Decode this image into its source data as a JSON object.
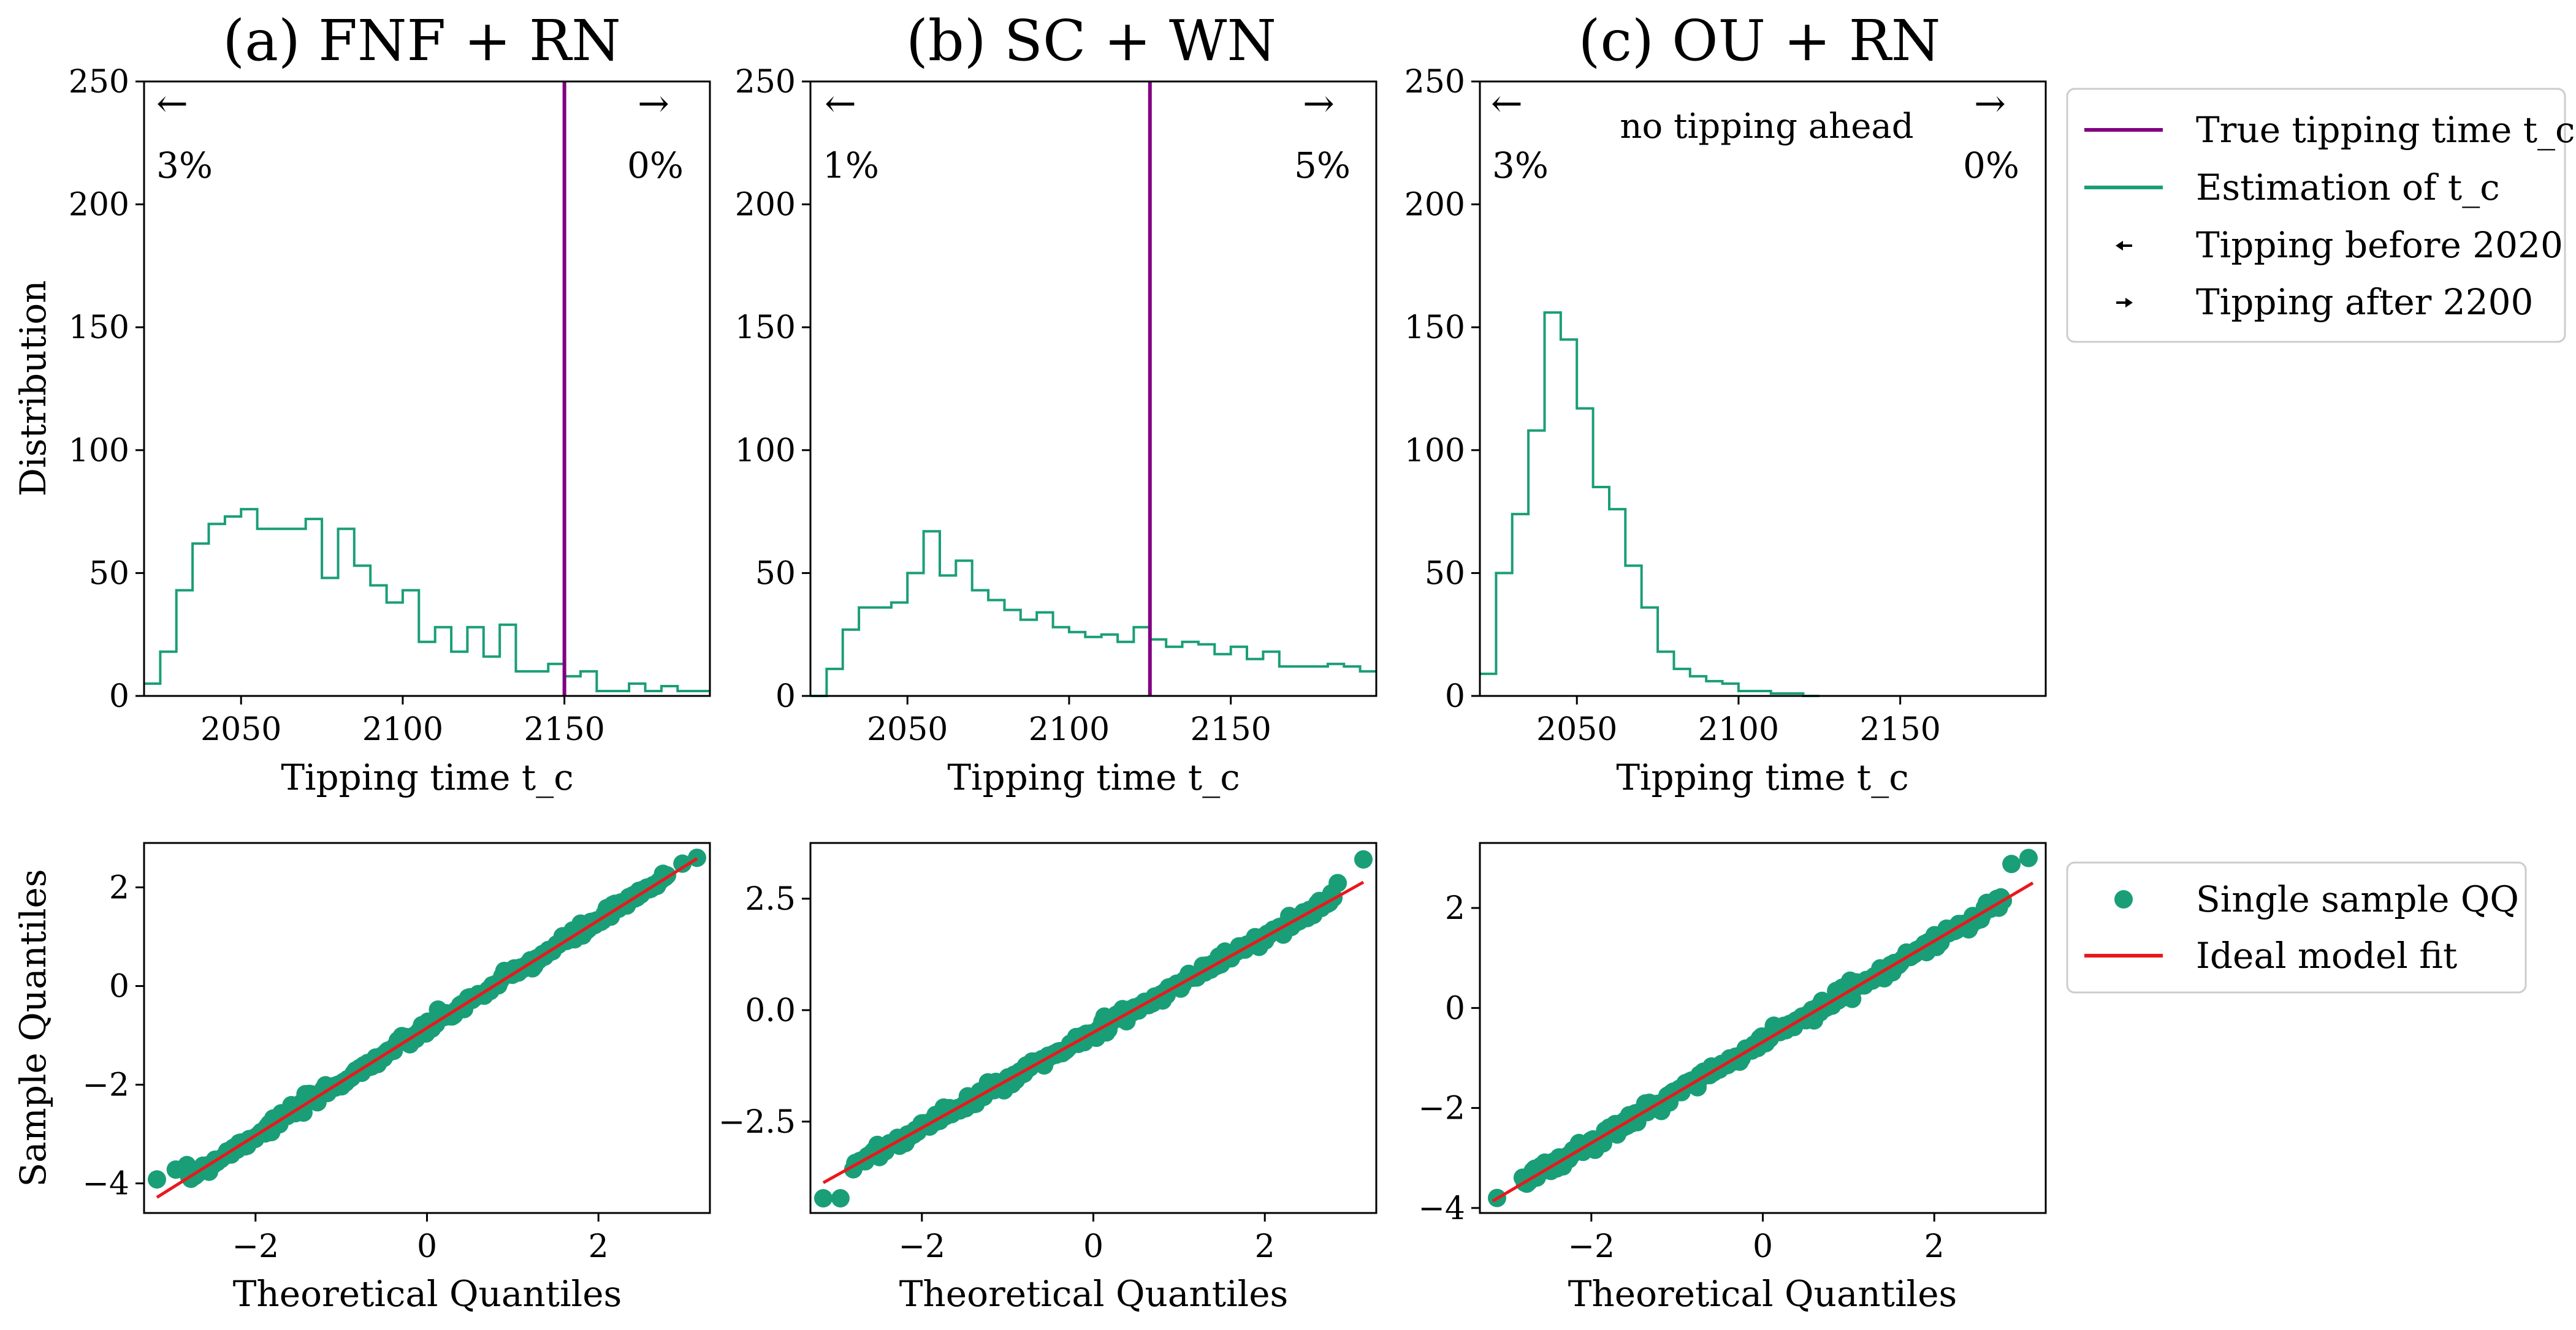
{
  "colors": {
    "histogram": "#1a9e77",
    "true_tc": "#800080",
    "note": "#8b008b",
    "qq_points": "#1a9e77",
    "fit_line": "#e8191c"
  },
  "legends": {
    "hist": [
      {
        "label": "True tipping time t_c",
        "icon": "purple-line"
      },
      {
        "label": "Estimation of t_c",
        "icon": "green-line"
      },
      {
        "label": "Tipping before 2020",
        "icon": "left-arrow"
      },
      {
        "label": "Tipping after 2200",
        "icon": "right-arrow"
      }
    ],
    "qq": [
      {
        "label": "Single sample QQ",
        "icon": "green-dot"
      },
      {
        "label": "Ideal model fit",
        "icon": "red-line"
      }
    ]
  },
  "chart_data": [
    {
      "type": "histogram",
      "title": "(a) FNF + RN",
      "xlabel": "Tipping time t_c",
      "ylabel": "Distribution",
      "xlim": [
        2020,
        2195
      ],
      "ylim": [
        0,
        250
      ],
      "xticks": [
        2050,
        2100,
        2150
      ],
      "yticks": [
        0,
        50,
        100,
        150,
        200,
        250
      ],
      "bin_width": 5,
      "bin_start": 2020,
      "counts": [
        5,
        18,
        43,
        62,
        70,
        73,
        76,
        68,
        68,
        68,
        72,
        48,
        68,
        53,
        45,
        38,
        43,
        22,
        28,
        18,
        28,
        16,
        29,
        10,
        10,
        13,
        8,
        10,
        2,
        2,
        5,
        2,
        4,
        2,
        2,
        0
      ],
      "true_tc": 2150,
      "left_pct": "3%",
      "right_pct": "0%",
      "left_arrow": "←",
      "right_arrow": "→",
      "note": ""
    },
    {
      "type": "histogram",
      "title": "(b) SC + WN",
      "xlabel": "Tipping time t_c",
      "ylabel": "",
      "xlim": [
        2020,
        2195
      ],
      "ylim": [
        0,
        250
      ],
      "xticks": [
        2050,
        2100,
        2150
      ],
      "yticks": [
        0,
        50,
        100,
        150,
        200,
        250
      ],
      "bin_width": 5,
      "bin_start": 2020,
      "counts": [
        0,
        11,
        27,
        36,
        36,
        38,
        50,
        67,
        49,
        55,
        43,
        39,
        35,
        31,
        34,
        28,
        26,
        24,
        25,
        22,
        28,
        23,
        20,
        22,
        21,
        17,
        20,
        15,
        18,
        12,
        12,
        12,
        13,
        12,
        10,
        11
      ],
      "true_tc": 2125,
      "left_pct": "1%",
      "right_pct": "5%",
      "left_arrow": "←",
      "right_arrow": "→",
      "note": ""
    },
    {
      "type": "histogram",
      "title": "(c) OU + RN",
      "xlabel": "Tipping time t_c",
      "ylabel": "",
      "xlim": [
        2020,
        2195
      ],
      "ylim": [
        0,
        250
      ],
      "xticks": [
        2050,
        2100,
        2150
      ],
      "yticks": [
        0,
        50,
        100,
        150,
        200,
        250
      ],
      "bin_width": 5,
      "bin_start": 2020,
      "counts": [
        9,
        50,
        74,
        108,
        156,
        145,
        117,
        85,
        76,
        53,
        36,
        18,
        11,
        8,
        6,
        5,
        2,
        2,
        1,
        1,
        0
      ],
      "true_tc": null,
      "left_pct": "3%",
      "right_pct": "0%",
      "left_arrow": "←",
      "right_arrow": "→",
      "note": "no tipping ahead"
    },
    {
      "type": "scatter",
      "xlabel": "Theoretical Quantiles",
      "ylabel": "Sample Quantiles",
      "xlim": [
        -3.3,
        3.3
      ],
      "ylim": [
        -4.6,
        2.9
      ],
      "xticks": [
        -2,
        0,
        2
      ],
      "xtick_labels": [
        "−2",
        "0",
        "2"
      ],
      "yticks": [
        -4,
        -2,
        0,
        2
      ],
      "ytick_labels": [
        "−4",
        "−2",
        "0",
        "2"
      ],
      "fit_line": {
        "slope": 1.09,
        "intercept": -0.85
      },
      "x_range": [
        -3.15,
        3.15
      ],
      "outliers": [
        [
          -3.15,
          -3.92
        ],
        [
          -2.93,
          -3.72
        ],
        [
          -2.78,
          -3.68
        ],
        [
          2.98,
          2.48
        ],
        [
          3.15,
          2.6
        ]
      ]
    },
    {
      "type": "scatter",
      "xlabel": "Theoretical Quantiles",
      "ylabel": "",
      "xlim": [
        -3.3,
        3.3
      ],
      "ylim": [
        -4.55,
        3.75
      ],
      "xticks": [
        -2,
        0,
        2
      ],
      "xtick_labels": [
        "−2",
        "0",
        "2"
      ],
      "yticks": [
        -2.5,
        0.0,
        2.5
      ],
      "ytick_labels": [
        "−2.5",
        "0.0",
        "2.5"
      ],
      "fit_line": {
        "slope": 1.07,
        "intercept": -0.5
      },
      "x_range": [
        -3.15,
        3.15
      ],
      "outliers": [
        [
          -3.15,
          -4.22
        ],
        [
          -2.95,
          -4.22
        ],
        [
          2.85,
          2.85
        ],
        [
          3.15,
          3.38
        ]
      ]
    },
    {
      "type": "scatter",
      "xlabel": "Theoretical Quantiles",
      "ylabel": "",
      "xlim": [
        -3.3,
        3.3
      ],
      "ylim": [
        -4.1,
        3.3
      ],
      "xticks": [
        -2,
        0,
        2
      ],
      "xtick_labels": [
        "−2",
        "0",
        "2"
      ],
      "yticks": [
        -4,
        -2,
        0,
        2
      ],
      "ytick_labels": [
        "−4",
        "−2",
        "0",
        "2"
      ],
      "fit_line": {
        "slope": 1.01,
        "intercept": -0.68
      },
      "x_range": [
        -3.15,
        3.15
      ],
      "outliers": [
        [
          -3.1,
          -3.8
        ],
        [
          2.9,
          2.88
        ],
        [
          3.1,
          3.0
        ]
      ]
    }
  ]
}
